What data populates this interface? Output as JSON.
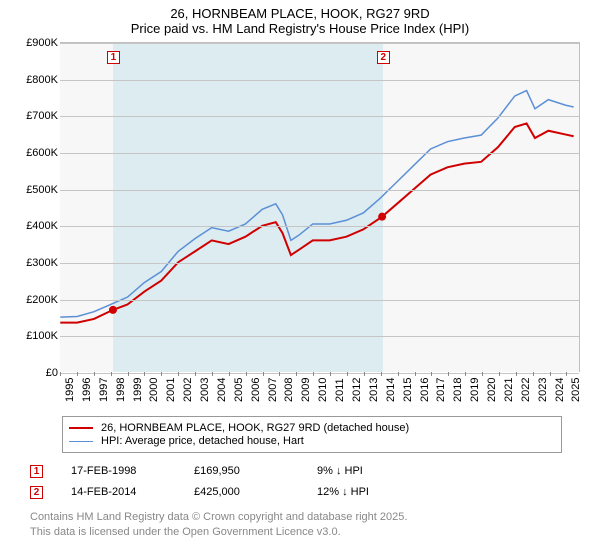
{
  "title_line1": "26, HORNBEAM PLACE, HOOK, RG27 9RD",
  "title_line2": "Price paid vs. HM Land Registry's House Price Index (HPI)",
  "title_fontsize": 13,
  "chart": {
    "type": "line",
    "background": "#f7f7f7",
    "grid_color": "#c5c5c5",
    "axis_font_size": 11,
    "xmin": 1995,
    "xmax": 2025.8,
    "ymin": 0,
    "ymax": 900000,
    "yticks": [
      0,
      100000,
      200000,
      300000,
      400000,
      500000,
      600000,
      700000,
      800000,
      900000
    ],
    "ytick_labels": [
      "£0",
      "£100K",
      "£200K",
      "£300K",
      "£400K",
      "£500K",
      "£600K",
      "£700K",
      "£800K",
      "£900K"
    ],
    "xticks": [
      1995,
      1996,
      1997,
      1998,
      1999,
      2000,
      2001,
      2002,
      2003,
      2004,
      2005,
      2006,
      2007,
      2008,
      2009,
      2010,
      2011,
      2012,
      2013,
      2014,
      2015,
      2016,
      2017,
      2018,
      2019,
      2020,
      2021,
      2022,
      2023,
      2024,
      2025
    ],
    "highlight_band": {
      "x_from": 1998.13,
      "x_to": 2014.12,
      "color": "rgba(173,216,230,0.35)"
    },
    "series": [
      {
        "name": "price_paid",
        "label": "26, HORNBEAM PLACE, HOOK, RG27 9RD (detached house)",
        "color": "#d00000",
        "width": 2,
        "data": [
          [
            1995,
            135000
          ],
          [
            1996,
            135000
          ],
          [
            1997,
            145000
          ],
          [
            1998.13,
            169950
          ],
          [
            1999,
            185000
          ],
          [
            2000,
            220000
          ],
          [
            2001,
            250000
          ],
          [
            2002,
            300000
          ],
          [
            2003,
            330000
          ],
          [
            2004,
            360000
          ],
          [
            2005,
            350000
          ],
          [
            2006,
            370000
          ],
          [
            2007,
            400000
          ],
          [
            2007.8,
            410000
          ],
          [
            2008.2,
            380000
          ],
          [
            2008.7,
            320000
          ],
          [
            2009.2,
            335000
          ],
          [
            2010,
            360000
          ],
          [
            2011,
            360000
          ],
          [
            2012,
            370000
          ],
          [
            2013,
            390000
          ],
          [
            2014.12,
            425000
          ],
          [
            2015,
            460000
          ],
          [
            2016,
            500000
          ],
          [
            2017,
            540000
          ],
          [
            2018,
            560000
          ],
          [
            2019,
            570000
          ],
          [
            2020,
            575000
          ],
          [
            2021,
            615000
          ],
          [
            2022,
            670000
          ],
          [
            2022.7,
            680000
          ],
          [
            2023.2,
            640000
          ],
          [
            2024,
            660000
          ],
          [
            2025,
            650000
          ],
          [
            2025.5,
            645000
          ]
        ]
      },
      {
        "name": "hpi",
        "label": "HPI: Average price, detached house, Hart",
        "color": "#5b8fd6",
        "width": 1.5,
        "data": [
          [
            1995,
            150000
          ],
          [
            1996,
            152000
          ],
          [
            1997,
            165000
          ],
          [
            1998,
            185000
          ],
          [
            1999,
            205000
          ],
          [
            2000,
            245000
          ],
          [
            2001,
            275000
          ],
          [
            2002,
            330000
          ],
          [
            2003,
            365000
          ],
          [
            2004,
            395000
          ],
          [
            2005,
            385000
          ],
          [
            2006,
            405000
          ],
          [
            2007,
            445000
          ],
          [
            2007.8,
            460000
          ],
          [
            2008.2,
            430000
          ],
          [
            2008.7,
            360000
          ],
          [
            2009.2,
            375000
          ],
          [
            2010,
            405000
          ],
          [
            2011,
            405000
          ],
          [
            2012,
            415000
          ],
          [
            2013,
            435000
          ],
          [
            2014,
            475000
          ],
          [
            2015,
            520000
          ],
          [
            2016,
            565000
          ],
          [
            2017,
            610000
          ],
          [
            2018,
            630000
          ],
          [
            2019,
            640000
          ],
          [
            2020,
            648000
          ],
          [
            2021,
            695000
          ],
          [
            2022,
            755000
          ],
          [
            2022.7,
            770000
          ],
          [
            2023.2,
            720000
          ],
          [
            2024,
            745000
          ],
          [
            2025,
            730000
          ],
          [
            2025.5,
            725000
          ]
        ]
      }
    ],
    "point_markers": [
      {
        "n": "1",
        "x": 1998.13,
        "y": 169950
      },
      {
        "n": "2",
        "x": 2014.12,
        "y": 425000
      }
    ],
    "top_markers": [
      {
        "n": "1",
        "x": 1998.13
      },
      {
        "n": "2",
        "x": 2014.12
      }
    ]
  },
  "legend": {
    "items": [
      {
        "color": "#d00000",
        "width": 2,
        "label": "26, HORNBEAM PLACE, HOOK, RG27 9RD (detached house)"
      },
      {
        "color": "#5b8fd6",
        "width": 1.5,
        "label": "HPI: Average price, detached house, Hart"
      }
    ]
  },
  "points_table": [
    {
      "n": "1",
      "date": "17-FEB-1998",
      "price": "£169,950",
      "delta": "9% ↓ HPI"
    },
    {
      "n": "2",
      "date": "14-FEB-2014",
      "price": "£425,000",
      "delta": "12% ↓ HPI"
    }
  ],
  "footer_line1": "Contains HM Land Registry data © Crown copyright and database right 2025.",
  "footer_line2": "This data is licensed under the Open Government Licence v3.0."
}
